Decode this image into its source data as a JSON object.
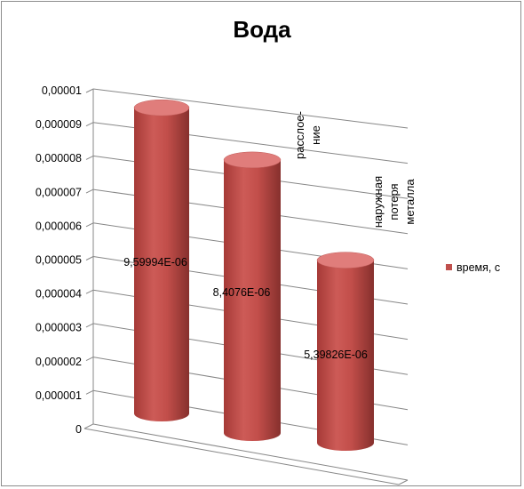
{
  "chart_data": {
    "type": "bar",
    "style": "3d-cylinder",
    "title": "Вода",
    "categories": [
      [
        "расслое-",
        "ние"
      ],
      [
        "наружная",
        "потеря",
        "металла"
      ],
      []
    ],
    "series": [
      {
        "name": "время, с",
        "values": [
          9.59994e-06,
          8.4076e-06,
          5.39826e-06
        ]
      }
    ],
    "data_labels": [
      "9,59994E-06",
      "8,4076E-06",
      "5,39826E-06"
    ],
    "y_ticks": [
      "0",
      "0,000001",
      "0,000002",
      "0,000003",
      "0,000004",
      "0,000005",
      "0,000006",
      "0,000007",
      "0,000008",
      "0,000009",
      "0,00001"
    ],
    "ylim": [
      0,
      1e-05
    ],
    "grid": true,
    "legend_position": "right",
    "colors": {
      "bar": "#c0504d",
      "bar_dark": "#8e2c2a",
      "bar_light": "#e07d7b",
      "grid": "#878787"
    }
  }
}
